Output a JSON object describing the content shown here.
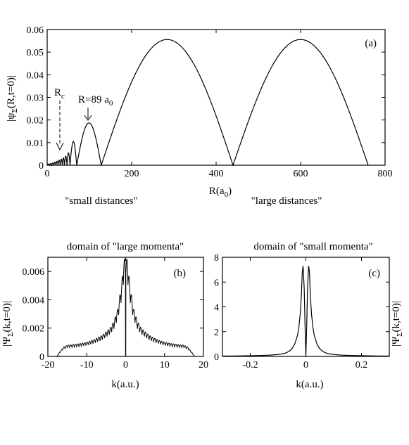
{
  "chart_data": [
    {
      "type": "line",
      "panel_label": "(a)",
      "xlabel": "R(a0)",
      "ylabel": "|ψΣ(R,t=0)|",
      "xlim": [
        0,
        800
      ],
      "ylim": [
        0,
        0.06
      ],
      "xticks": [
        0,
        200,
        400,
        600,
        800
      ],
      "xtick_labels": [
        "0",
        "200",
        "400",
        "600",
        "800"
      ],
      "yticks": [
        0,
        0.01,
        0.02,
        0.03,
        0.04,
        0.05,
        0.06
      ],
      "ytick_labels": [
        "0",
        "0.01",
        "0.02",
        "0.03",
        "0.04",
        "0.05",
        "0.06"
      ],
      "lobes": [
        {
          "start": 0,
          "end": 6,
          "peak": 0.0006
        },
        {
          "start": 6,
          "end": 11,
          "peak": 0.0008
        },
        {
          "start": 11,
          "end": 16,
          "peak": 0.001
        },
        {
          "start": 16,
          "end": 21,
          "peak": 0.0014
        },
        {
          "start": 21,
          "end": 26,
          "peak": 0.0018
        },
        {
          "start": 26,
          "end": 31,
          "peak": 0.0022
        },
        {
          "start": 31,
          "end": 36,
          "peak": 0.0027
        },
        {
          "start": 36,
          "end": 41,
          "peak": 0.0033
        },
        {
          "start": 41,
          "end": 47,
          "peak": 0.004
        },
        {
          "start": 47,
          "end": 54,
          "peak": 0.0055
        },
        {
          "start": 54,
          "end": 70,
          "peak": 0.0105
        },
        {
          "start": 70,
          "end": 128,
          "peak": 0.0187
        },
        {
          "start": 128,
          "end": 440,
          "peak": 0.0556
        },
        {
          "start": 440,
          "end": 760,
          "peak": 0.0556
        }
      ],
      "annotations": [
        {
          "name": "rc",
          "text_main": "R",
          "text_sub": "c",
          "x": 30,
          "y": 0.0012
        },
        {
          "name": "peak",
          "text_main": "R=89 a",
          "text_sub": "0",
          "x": 89,
          "y": 0.0187
        }
      ],
      "region_labels": [
        "\"small distances\"",
        "\"large distances\""
      ]
    },
    {
      "type": "line",
      "panel_label": "(b)",
      "title": "domain of \"large momenta\"",
      "xlabel": "k(a.u.)",
      "ylabel": "|ΨΣ(k,t=0)|",
      "xlim": [
        -20,
        20
      ],
      "ylim": [
        0,
        0.007
      ],
      "xticks": [
        -20,
        -10,
        0,
        10,
        20
      ],
      "xtick_labels": [
        "-20",
        "-10",
        "0",
        "10",
        "20"
      ],
      "yticks": [
        0,
        0.002,
        0.004,
        0.006
      ],
      "ytick_labels": [
        "0",
        "0.002",
        "0.004",
        "0.006"
      ],
      "envelope_points": [
        [
          0,
          0.007
        ],
        [
          0.5,
          0.0068
        ],
        [
          1,
          0.0052
        ],
        [
          2,
          0.0034
        ],
        [
          3,
          0.0025
        ],
        [
          4,
          0.002
        ],
        [
          6,
          0.0015
        ],
        [
          8,
          0.0012
        ],
        [
          10,
          0.001
        ],
        [
          12,
          0.0009
        ],
        [
          14,
          0.00082
        ],
        [
          15,
          0.0008
        ],
        [
          16,
          0.00065
        ],
        [
          17,
          0.0003
        ],
        [
          17.7,
          0.0
        ]
      ],
      "oscillation_period": 0.6
    },
    {
      "type": "line",
      "panel_label": "(c)",
      "title": "domain of \"small momenta\"",
      "xlabel": "k(a.u.)",
      "ylabel": "|ΨΣ(k,t=0)|",
      "xlim": [
        -0.3,
        0.3
      ],
      "ylim": [
        0,
        8
      ],
      "xticks": [
        -0.2,
        0,
        0.2
      ],
      "xtick_labels": [
        "-0.2",
        "0",
        "0.2"
      ],
      "yticks": [
        0,
        2,
        4,
        6,
        8
      ],
      "ytick_labels": [
        "0",
        "2",
        "4",
        "6",
        "8"
      ],
      "points": [
        [
          0,
          0
        ],
        [
          0.003,
          2.5
        ],
        [
          0.006,
          5.5
        ],
        [
          0.01,
          7.3
        ],
        [
          0.013,
          6.8
        ],
        [
          0.016,
          5.0
        ],
        [
          0.02,
          3.5
        ],
        [
          0.025,
          2.4
        ],
        [
          0.03,
          1.7
        ],
        [
          0.04,
          1.0
        ],
        [
          0.05,
          0.62
        ],
        [
          0.06,
          0.42
        ],
        [
          0.07,
          0.3
        ],
        [
          0.08,
          0.22
        ],
        [
          0.1,
          0.16
        ],
        [
          0.13,
          0.1
        ],
        [
          0.16,
          0.08
        ],
        [
          0.2,
          0.06
        ],
        [
          0.25,
          0.04
        ],
        [
          0.3,
          0.03
        ]
      ]
    }
  ]
}
